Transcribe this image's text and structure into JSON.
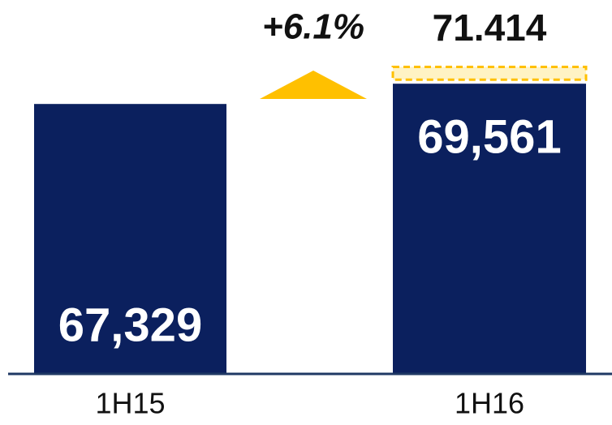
{
  "chart_data": {
    "type": "bar",
    "categories": [
      "1H15",
      "1H16"
    ],
    "values": [
      67329,
      69561
    ],
    "value_labels": [
      "67,329",
      "69,561"
    ],
    "color": "#0b205e",
    "target": {
      "value": 71414,
      "label": "71.414",
      "color": "#ffc000"
    },
    "annotation": "+6.1%",
    "ylim": [
      37700,
      71900
    ]
  }
}
